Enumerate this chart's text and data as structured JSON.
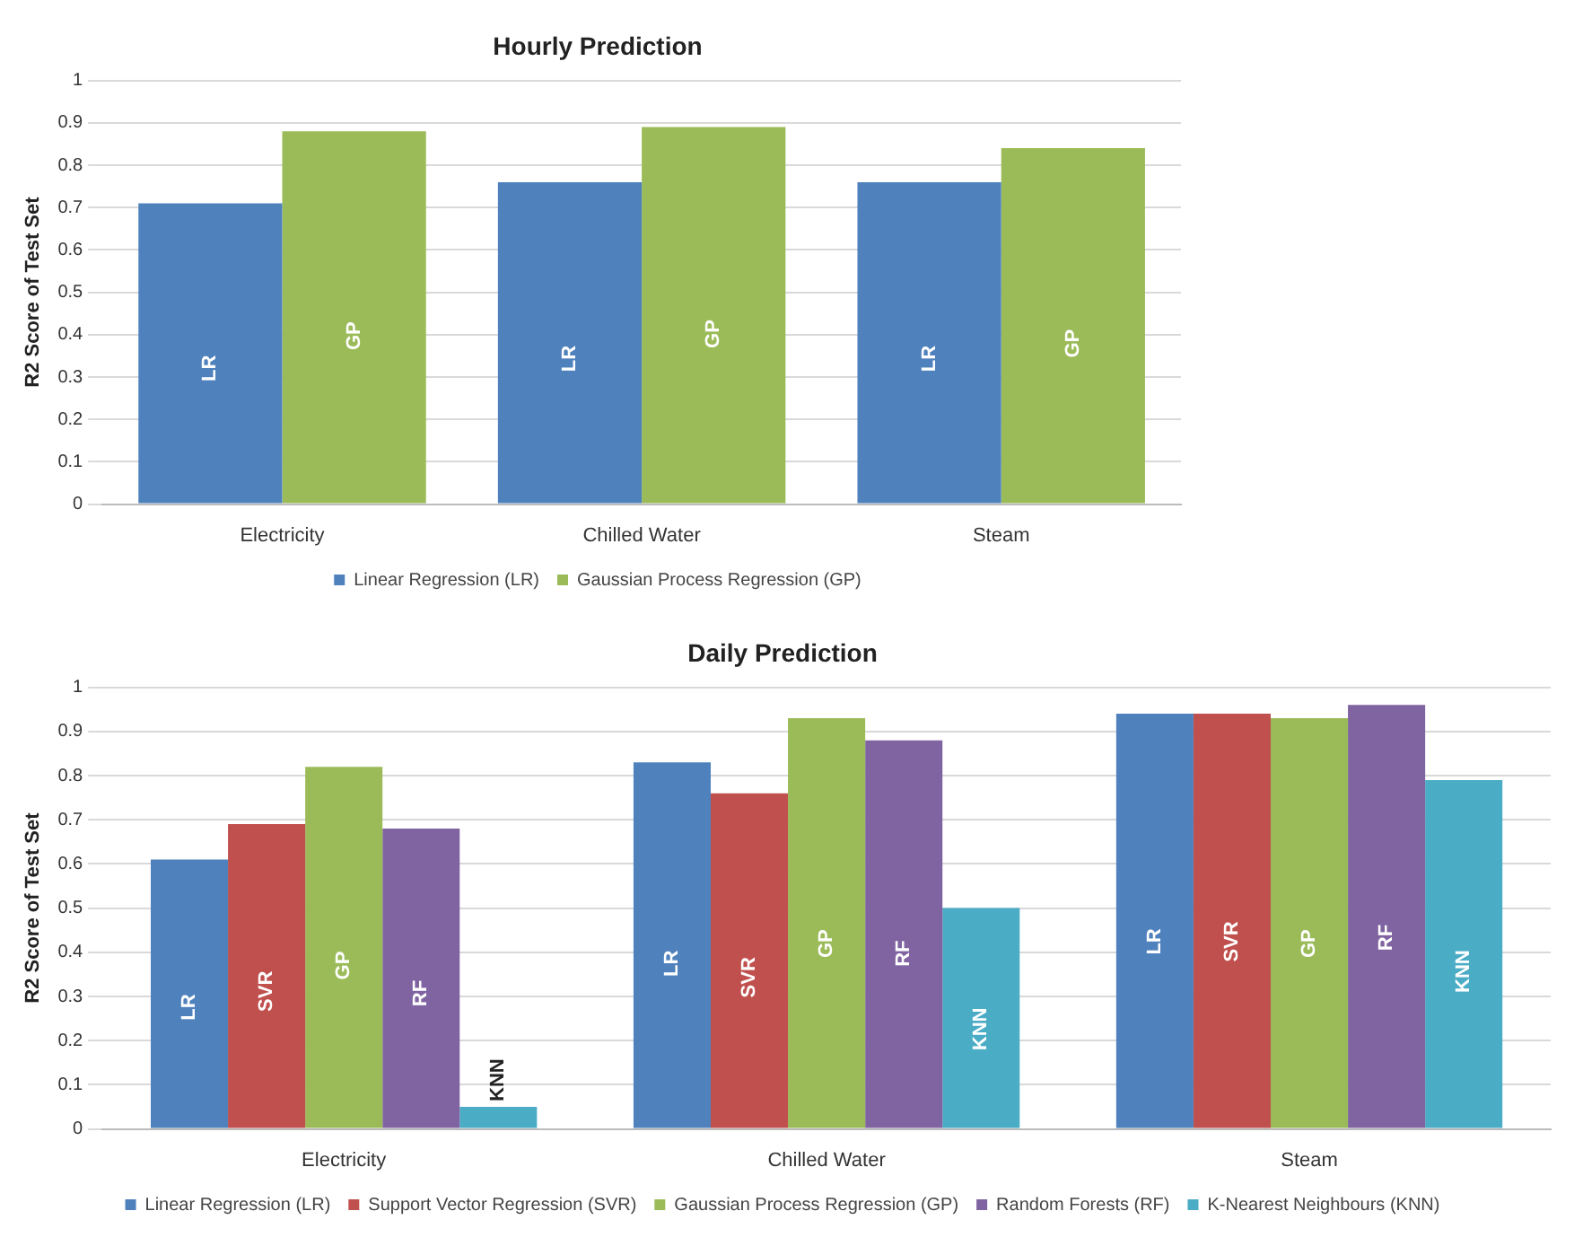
{
  "chart_data": [
    {
      "type": "bar",
      "title": "Hourly Prediction",
      "ylabel": "R2 Score of Test Set",
      "categories": [
        "Electricity",
        "Chilled Water",
        "Steam"
      ],
      "ylim": [
        0,
        1
      ],
      "yticks": [
        0,
        0.1,
        0.2,
        0.3,
        0.4,
        0.5,
        0.6,
        0.7,
        0.8,
        0.9,
        1
      ],
      "grid": "y",
      "legend": "bottom",
      "series": [
        {
          "name": "Linear Regression (LR)",
          "color": "#4f81bd",
          "values": [
            0.71,
            0.76,
            0.76
          ],
          "value_labels": [
            "LR",
            "LR",
            "LR"
          ]
        },
        {
          "name": "Gaussian Process Regression (GP)",
          "color": "#9bbb59",
          "values": [
            0.88,
            0.89,
            0.84
          ],
          "value_labels": [
            "GP",
            "GP",
            "GP"
          ]
        }
      ]
    },
    {
      "type": "bar",
      "title": "Daily Prediction",
      "ylabel": "R2 Score of Test Set",
      "categories": [
        "Electricity",
        "Chilled Water",
        "Steam"
      ],
      "ylim": [
        0,
        1
      ],
      "yticks": [
        0,
        0.1,
        0.2,
        0.3,
        0.4,
        0.5,
        0.6,
        0.7,
        0.8,
        0.9,
        1
      ],
      "grid": "y",
      "legend": "bottom",
      "series": [
        {
          "name": "Linear Regression (LR)",
          "color": "#4f81bd",
          "values": [
            0.61,
            0.83,
            0.94
          ],
          "value_labels": [
            "LR",
            "LR",
            "LR"
          ]
        },
        {
          "name": "Support Vector Regression (SVR)",
          "color": "#c0504d",
          "values": [
            0.69,
            0.76,
            0.94
          ],
          "value_labels": [
            "SVR",
            "SVR",
            "SVR"
          ]
        },
        {
          "name": "Gaussian Process Regression (GP)",
          "color": "#9bbb59",
          "values": [
            0.82,
            0.93,
            0.93
          ],
          "value_labels": [
            "GP",
            "GP",
            "GP"
          ]
        },
        {
          "name": "Random Forests (RF)",
          "color": "#8064a2",
          "values": [
            0.68,
            0.88,
            0.96
          ],
          "value_labels": [
            "RF",
            "RF",
            "RF"
          ]
        },
        {
          "name": "K-Nearest Neighbours (KNN)",
          "color": "#4bacc6",
          "values": [
            0.05,
            0.5,
            0.79
          ],
          "value_labels": [
            "KNN",
            "KNN",
            "KNN"
          ]
        }
      ]
    }
  ]
}
